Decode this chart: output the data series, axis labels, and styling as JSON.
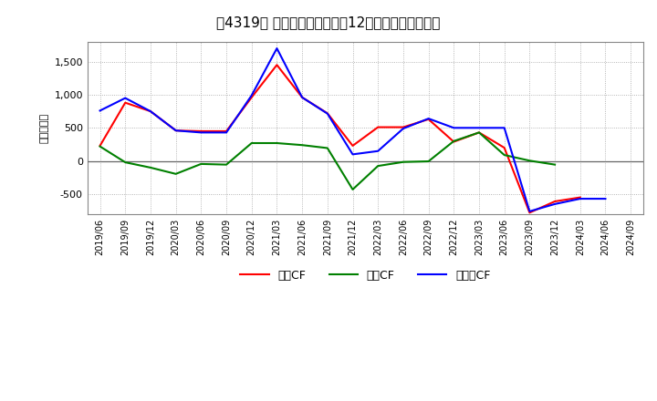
{
  "title": "［4319］ キャッシュフローの12か月移動合計の推移",
  "ylabel": "（百万円）",
  "x_labels": [
    "2019/06",
    "2019/09",
    "2019/12",
    "2020/03",
    "2020/06",
    "2020/09",
    "2020/12",
    "2021/03",
    "2021/06",
    "2021/09",
    "2021/12",
    "2022/03",
    "2022/06",
    "2022/09",
    "2022/12",
    "2023/03",
    "2023/06",
    "2023/09",
    "2023/12",
    "2024/03",
    "2024/06",
    "2024/09"
  ],
  "operating_cf": [
    230,
    880,
    750,
    460,
    450,
    450,
    960,
    1450,
    960,
    720,
    230,
    510,
    510,
    630,
    290,
    430,
    200,
    -780,
    -610,
    -550,
    null,
    null
  ],
  "investing_cf": [
    220,
    -20,
    -100,
    -195,
    -45,
    -55,
    270,
    270,
    240,
    195,
    -430,
    -75,
    -15,
    -5,
    300,
    430,
    90,
    5,
    -55,
    null,
    null,
    null
  ],
  "free_cf": [
    760,
    950,
    750,
    460,
    430,
    430,
    990,
    1700,
    960,
    715,
    100,
    150,
    490,
    640,
    500,
    500,
    500,
    -760,
    -650,
    -570,
    -570,
    null
  ],
  "ylim": [
    -800,
    1800
  ],
  "yticks": [
    -500,
    0,
    500,
    1000,
    1500
  ],
  "bg_color": "#ffffff",
  "grid_color": "#aaaaaa",
  "operating_color": "#ff0000",
  "investing_color": "#008000",
  "free_color": "#0000ff",
  "legend_labels": [
    "営業CF",
    "投資CF",
    "フリーCF"
  ]
}
